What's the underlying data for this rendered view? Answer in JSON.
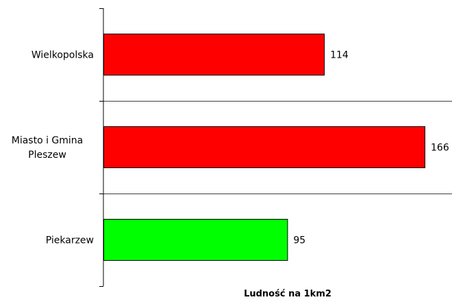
{
  "chart_data": {
    "type": "bar",
    "orientation": "horizontal",
    "categories": [
      "Wielkopolska",
      "Miasto i Gmina Pleszew",
      "Piekarzew"
    ],
    "category_lines": [
      [
        "Wielkopolska"
      ],
      [
        "Miasto i Gmina",
        "Pleszew"
      ],
      [
        "Piekarzew"
      ]
    ],
    "values": [
      114,
      166,
      95
    ],
    "value_labels": [
      "114",
      "166",
      "95"
    ],
    "bar_colors": [
      "#ff0000",
      "#ff0000",
      "#00ff00"
    ],
    "xlabel": "Ludność na 1km2",
    "xlim": [
      0,
      170
    ],
    "grid": "horizontal category separators",
    "legend": "none"
  }
}
